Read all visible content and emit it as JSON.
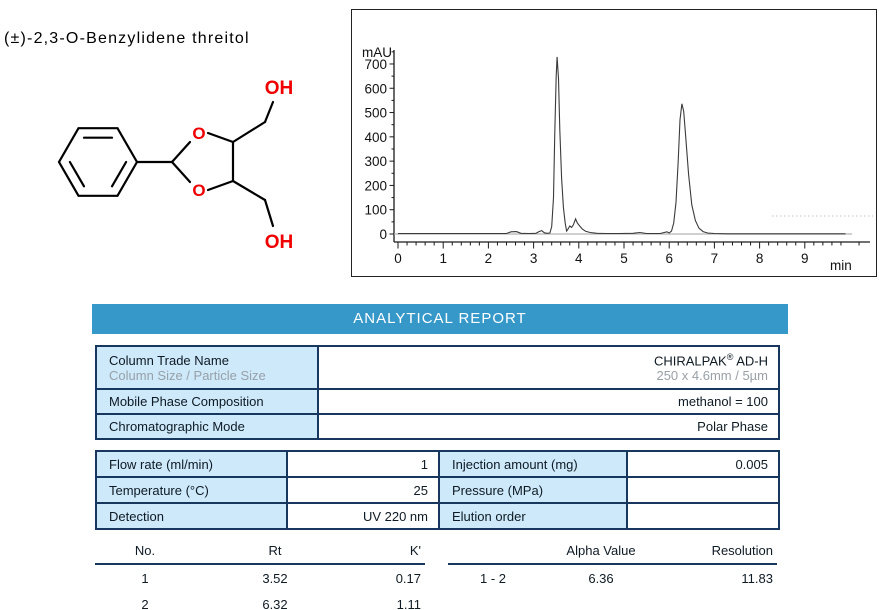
{
  "compound": {
    "name": "(±)-2,3-O-Benzylidene threitol",
    "atom_labels": {
      "o_top": "O",
      "o_bottom": "O",
      "oh_top": "OH",
      "oh_bottom": "OH"
    }
  },
  "report": {
    "banner": "ANALYTICAL REPORT",
    "accent_color": "#3598c9",
    "cell_bg_color": "#cde9fa",
    "border_color": "#17375e"
  },
  "column_table": {
    "rows": [
      {
        "label": "Column Trade Name",
        "sublabel": "Column Size / Particle Size",
        "value_main": "CHIRALPAK",
        "value_sup": "®",
        "value_tail": " AD-H",
        "subvalue": "250 x 4.6mm / 5µm"
      },
      {
        "label": "Mobile Phase Composition",
        "value": "methanol = 100"
      },
      {
        "label": "Chromatographic Mode",
        "value": "Polar Phase"
      }
    ]
  },
  "conditions_table": {
    "rows": [
      {
        "label": "Flow rate (ml/min)",
        "value": "1",
        "label2": "Injection amount (mg)",
        "value2": "0.005"
      },
      {
        "label": "Temperature (°C)",
        "value": "25",
        "label2": "Pressure (MPa)",
        "value2": ""
      },
      {
        "label": "Detection",
        "value": "UV 220 nm",
        "label2": "Elution order",
        "value2": ""
      }
    ]
  },
  "results": {
    "peaks": {
      "headers": [
        "No.",
        "Rt",
        "K'"
      ],
      "rows": [
        [
          "1",
          "3.52",
          "0.17"
        ],
        [
          "2",
          "6.32",
          "1.11"
        ]
      ]
    },
    "separation": {
      "alpha_header": "Alpha Value",
      "resolution_header": "Resolution",
      "pair": "1 - 2",
      "alpha": "6.36",
      "resolution": "11.83"
    }
  },
  "chart_data": {
    "type": "line",
    "title": "",
    "ylabel": "mAU",
    "xlabel": "min",
    "x_ticks": [
      0,
      1,
      2,
      3,
      4,
      5,
      6,
      7,
      8,
      9
    ],
    "y_ticks": [
      0,
      100,
      200,
      300,
      400,
      500,
      600,
      700
    ],
    "xlim": [
      0,
      9.95
    ],
    "ylim": [
      -20,
      760
    ],
    "grid": false,
    "legend": "none",
    "peaks": [
      {
        "no": 1,
        "rt_min": 3.52,
        "height_mAU": 729
      },
      {
        "no": 2,
        "rt_min": 6.32,
        "height_mAU": 536
      }
    ],
    "series": [
      {
        "name": "UV 220 nm signal",
        "color": "#3a3a3a",
        "points": [
          [
            0,
            2
          ],
          [
            0.5,
            2
          ],
          [
            1,
            2
          ],
          [
            1.5,
            2
          ],
          [
            2,
            2
          ],
          [
            2.4,
            2
          ],
          [
            2.5,
            9
          ],
          [
            2.62,
            10
          ],
          [
            2.72,
            3
          ],
          [
            2.9,
            2
          ],
          [
            3.05,
            3
          ],
          [
            3.12,
            10
          ],
          [
            3.18,
            14
          ],
          [
            3.24,
            5
          ],
          [
            3.3,
            3
          ],
          [
            3.36,
            4
          ],
          [
            3.4,
            30
          ],
          [
            3.44,
            150
          ],
          [
            3.47,
            420
          ],
          [
            3.5,
            650
          ],
          [
            3.52,
            729
          ],
          [
            3.55,
            640
          ],
          [
            3.58,
            430
          ],
          [
            3.62,
            230
          ],
          [
            3.66,
            110
          ],
          [
            3.7,
            45
          ],
          [
            3.73,
            12
          ],
          [
            3.76,
            20
          ],
          [
            3.8,
            33
          ],
          [
            3.84,
            27
          ],
          [
            3.88,
            38
          ],
          [
            3.93,
            62
          ],
          [
            3.97,
            45
          ],
          [
            4.02,
            33
          ],
          [
            4.08,
            20
          ],
          [
            4.15,
            11
          ],
          [
            4.25,
            6
          ],
          [
            4.4,
            3
          ],
          [
            4.6,
            2
          ],
          [
            4.9,
            2
          ],
          [
            5.2,
            3
          ],
          [
            5.35,
            6
          ],
          [
            5.5,
            2
          ],
          [
            5.8,
            2
          ],
          [
            5.95,
            9
          ],
          [
            6.0,
            4
          ],
          [
            6.05,
            12
          ],
          [
            6.1,
            45
          ],
          [
            6.15,
            130
          ],
          [
            6.2,
            300
          ],
          [
            6.24,
            470
          ],
          [
            6.28,
            536
          ],
          [
            6.32,
            505
          ],
          [
            6.37,
            390
          ],
          [
            6.43,
            245
          ],
          [
            6.5,
            120
          ],
          [
            6.58,
            55
          ],
          [
            6.66,
            24
          ],
          [
            6.75,
            10
          ],
          [
            6.85,
            4
          ],
          [
            7.0,
            2
          ],
          [
            7.3,
            1
          ],
          [
            8,
            1
          ],
          [
            9,
            1
          ],
          [
            9.9,
            1
          ]
        ]
      }
    ]
  }
}
